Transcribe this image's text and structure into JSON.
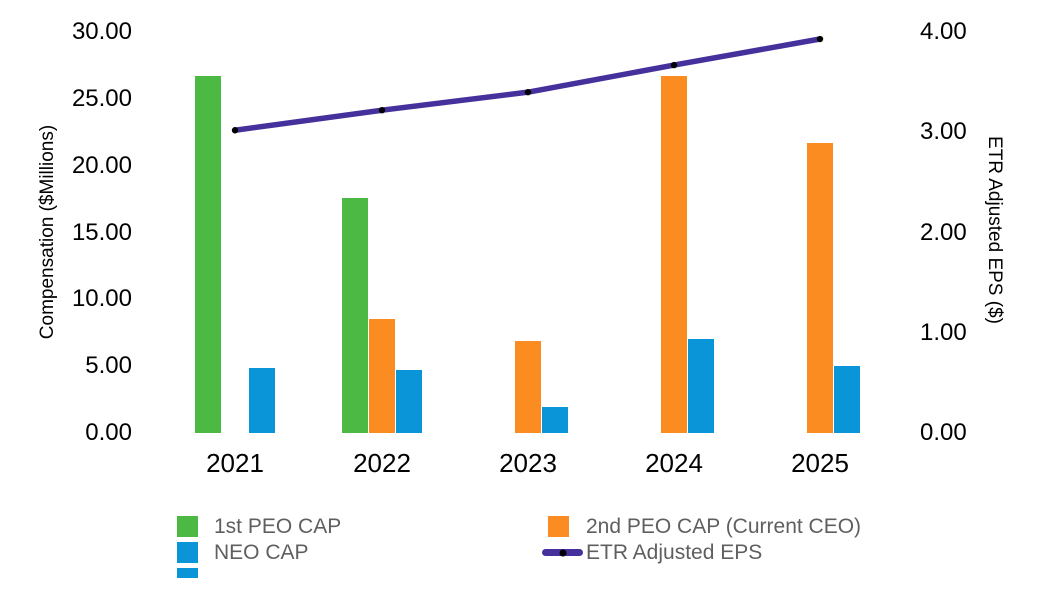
{
  "chart_data": {
    "type": "bar",
    "subtype": "grouped-bar-with-line-overlay",
    "categories": [
      "2021",
      "2022",
      "2023",
      "2024",
      "2025"
    ],
    "series": [
      {
        "name": "1st PEO CAP",
        "type": "bar",
        "axis": "left",
        "color": "#4CB944",
        "values": [
          26.7,
          17.6,
          null,
          null,
          null
        ]
      },
      {
        "name": "2nd PEO CAP (Current CEO)",
        "type": "bar",
        "axis": "left",
        "color": "#FB8C22",
        "values": [
          null,
          8.5,
          6.9,
          26.7,
          21.7
        ]
      },
      {
        "name": "NEO CAP",
        "type": "bar",
        "axis": "left",
        "color": "#0A95D8",
        "values": [
          4.9,
          4.7,
          1.95,
          7.0,
          5.0
        ]
      },
      {
        "name": "ETR Adjusted EPS",
        "type": "line",
        "axis": "right",
        "color": "#46309C",
        "marker_color": "#000000",
        "values": [
          3.02,
          3.22,
          3.4,
          3.67,
          3.93
        ]
      }
    ],
    "title": "",
    "xlabel": "",
    "left_axis": {
      "title": "Compensation ($Millions)",
      "range": [
        0,
        30
      ],
      "ticks": [
        "30.00",
        "25.00",
        "20.00",
        "15.00",
        "10.00",
        "5.00",
        "0.00"
      ]
    },
    "right_axis": {
      "title": "ETR Adjusted EPS ($)",
      "range": [
        0,
        4
      ],
      "ticks": [
        "4.00",
        "3.00",
        "2.00",
        "1.00",
        "0.00"
      ]
    },
    "grid": false,
    "legend_position": "bottom",
    "background_color": "#FFFFFF"
  },
  "legend": {
    "items": [
      {
        "label": "1st PEO CAP",
        "swatch": "square",
        "color": "#4CB944"
      },
      {
        "label": "NEO CAP",
        "swatch": "square",
        "color": "#0A95D8"
      },
      {
        "label": "2nd PEO CAP (Current CEO)",
        "swatch": "square",
        "color": "#FB8C22"
      },
      {
        "label": "ETR Adjusted EPS",
        "swatch": "line",
        "color": "#46309C"
      }
    ],
    "clipped_fragment_color": "#0A95D8"
  }
}
